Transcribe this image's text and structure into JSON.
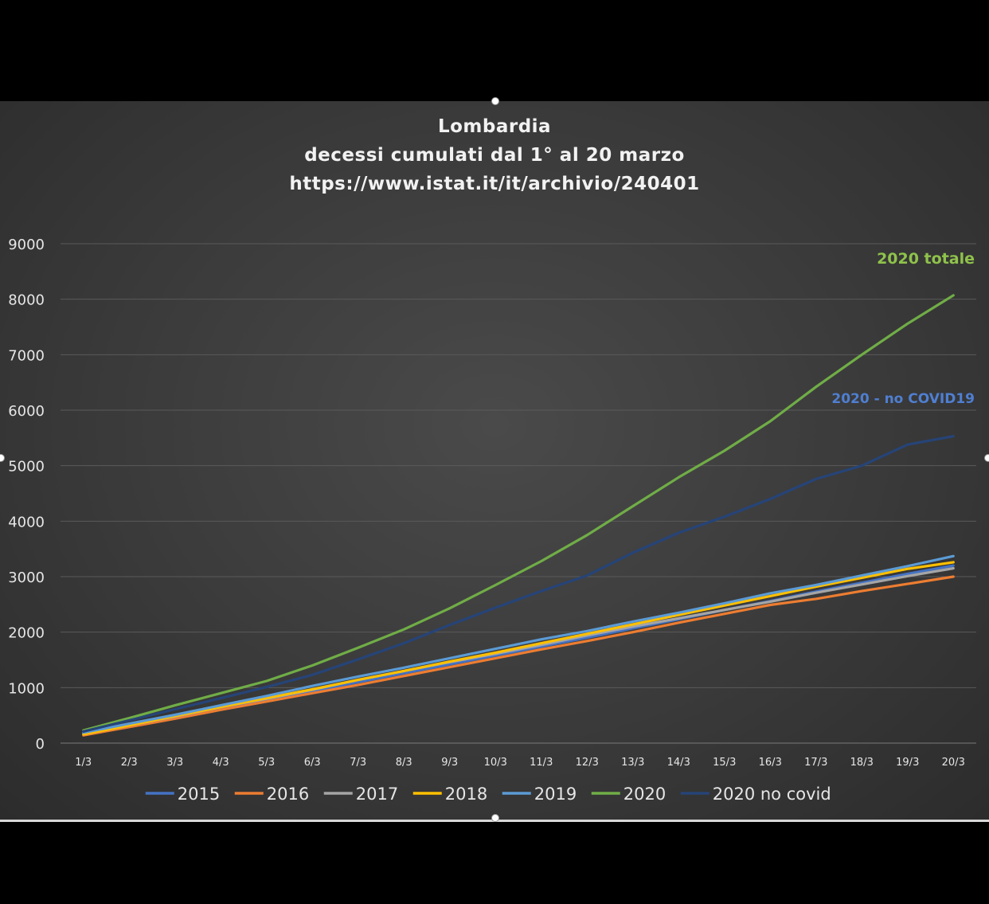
{
  "chart_data": {
    "type": "line",
    "title_lines": [
      "Lombardia",
      "decessi cumulati dal 1° al 20 marzo",
      "https://www.istat.it/it/archivio/240401"
    ],
    "categories": [
      "1/3",
      "2/3",
      "3/3",
      "4/3",
      "5/3",
      "6/3",
      "7/3",
      "8/3",
      "9/3",
      "10/3",
      "11/3",
      "12/3",
      "13/3",
      "14/3",
      "15/3",
      "16/3",
      "17/3",
      "18/3",
      "19/3",
      "20/3"
    ],
    "ylim": [
      0,
      9000
    ],
    "yticks": [
      "0",
      "1000",
      "2000",
      "3000",
      "4000",
      "5000",
      "6000",
      "7000",
      "8000",
      "9000"
    ],
    "grid": true,
    "legend_position": "bottom",
    "series": [
      {
        "name": "2015",
        "color": "#4472c4",
        "values": [
          170,
          330,
          480,
          640,
          790,
          940,
          1100,
          1260,
          1420,
          1580,
          1740,
          1900,
          2070,
          2230,
          2400,
          2560,
          2730,
          2890,
          3050,
          3200
        ]
      },
      {
        "name": "2016",
        "color": "#ed7d31",
        "values": [
          140,
          290,
          440,
          600,
          750,
          900,
          1050,
          1210,
          1370,
          1530,
          1690,
          1840,
          2000,
          2170,
          2330,
          2490,
          2600,
          2740,
          2870,
          3000
        ]
      },
      {
        "name": "2017",
        "color": "#a5a5a5",
        "values": [
          160,
          320,
          480,
          650,
          800,
          960,
          1140,
          1300,
          1460,
          1610,
          1770,
          1940,
          2100,
          2250,
          2400,
          2550,
          2710,
          2860,
          3010,
          3150
        ]
      },
      {
        "name": "2018",
        "color": "#ffc000",
        "values": [
          160,
          320,
          490,
          650,
          810,
          970,
          1140,
          1300,
          1470,
          1630,
          1800,
          1970,
          2140,
          2310,
          2480,
          2650,
          2820,
          2980,
          3140,
          3260
        ]
      },
      {
        "name": "2019",
        "color": "#5b9bd5",
        "values": [
          190,
          350,
          510,
          680,
          850,
          1030,
          1200,
          1360,
          1530,
          1700,
          1870,
          2020,
          2190,
          2350,
          2520,
          2700,
          2850,
          3020,
          3190,
          3370
        ]
      },
      {
        "name": "2020",
        "color": "#70ad47",
        "values": [
          230,
          450,
          680,
          900,
          1120,
          1400,
          1720,
          2050,
          2430,
          2850,
          3280,
          3750,
          4270,
          4790,
          5270,
          5800,
          6420,
          7000,
          7560,
          8070
        ]
      },
      {
        "name": "2020 no covid",
        "color": "#264478",
        "values": [
          210,
          410,
          610,
          810,
          1010,
          1230,
          1510,
          1800,
          2130,
          2440,
          2740,
          3020,
          3430,
          3790,
          4080,
          4400,
          4760,
          5000,
          5380,
          5530
        ]
      }
    ],
    "annotations": [
      {
        "text": "2020 totale",
        "color": "#8fc24b"
      },
      {
        "text": "2020 - no COVID19",
        "color": "#4f7fd1"
      }
    ]
  }
}
